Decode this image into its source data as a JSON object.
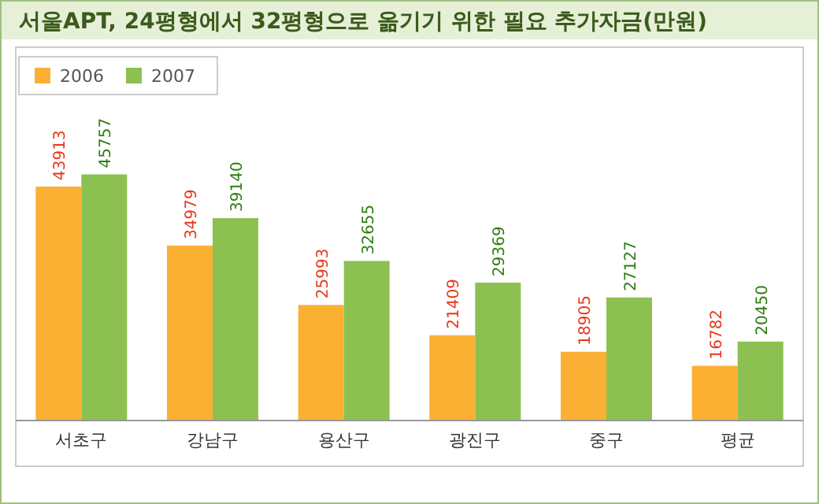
{
  "chart_data": {
    "type": "bar",
    "title": "서울APT, 24평형에서 32평형으로 옮기기 위한 필요 추가자금(만원)",
    "categories": [
      "서초구",
      "강남구",
      "용산구",
      "광진구",
      "중구",
      "평균"
    ],
    "series": [
      {
        "name": "2006",
        "color": "#fbb034",
        "values": [
          43913,
          34979,
          25993,
          21409,
          18905,
          16782
        ]
      },
      {
        "name": "2007",
        "color": "#8cc152",
        "values": [
          45757,
          39140,
          32655,
          29369,
          27127,
          20450
        ]
      }
    ],
    "ylim": [
      8500,
      65000
    ],
    "data_labels": true,
    "legend": "top left",
    "grid": false
  }
}
